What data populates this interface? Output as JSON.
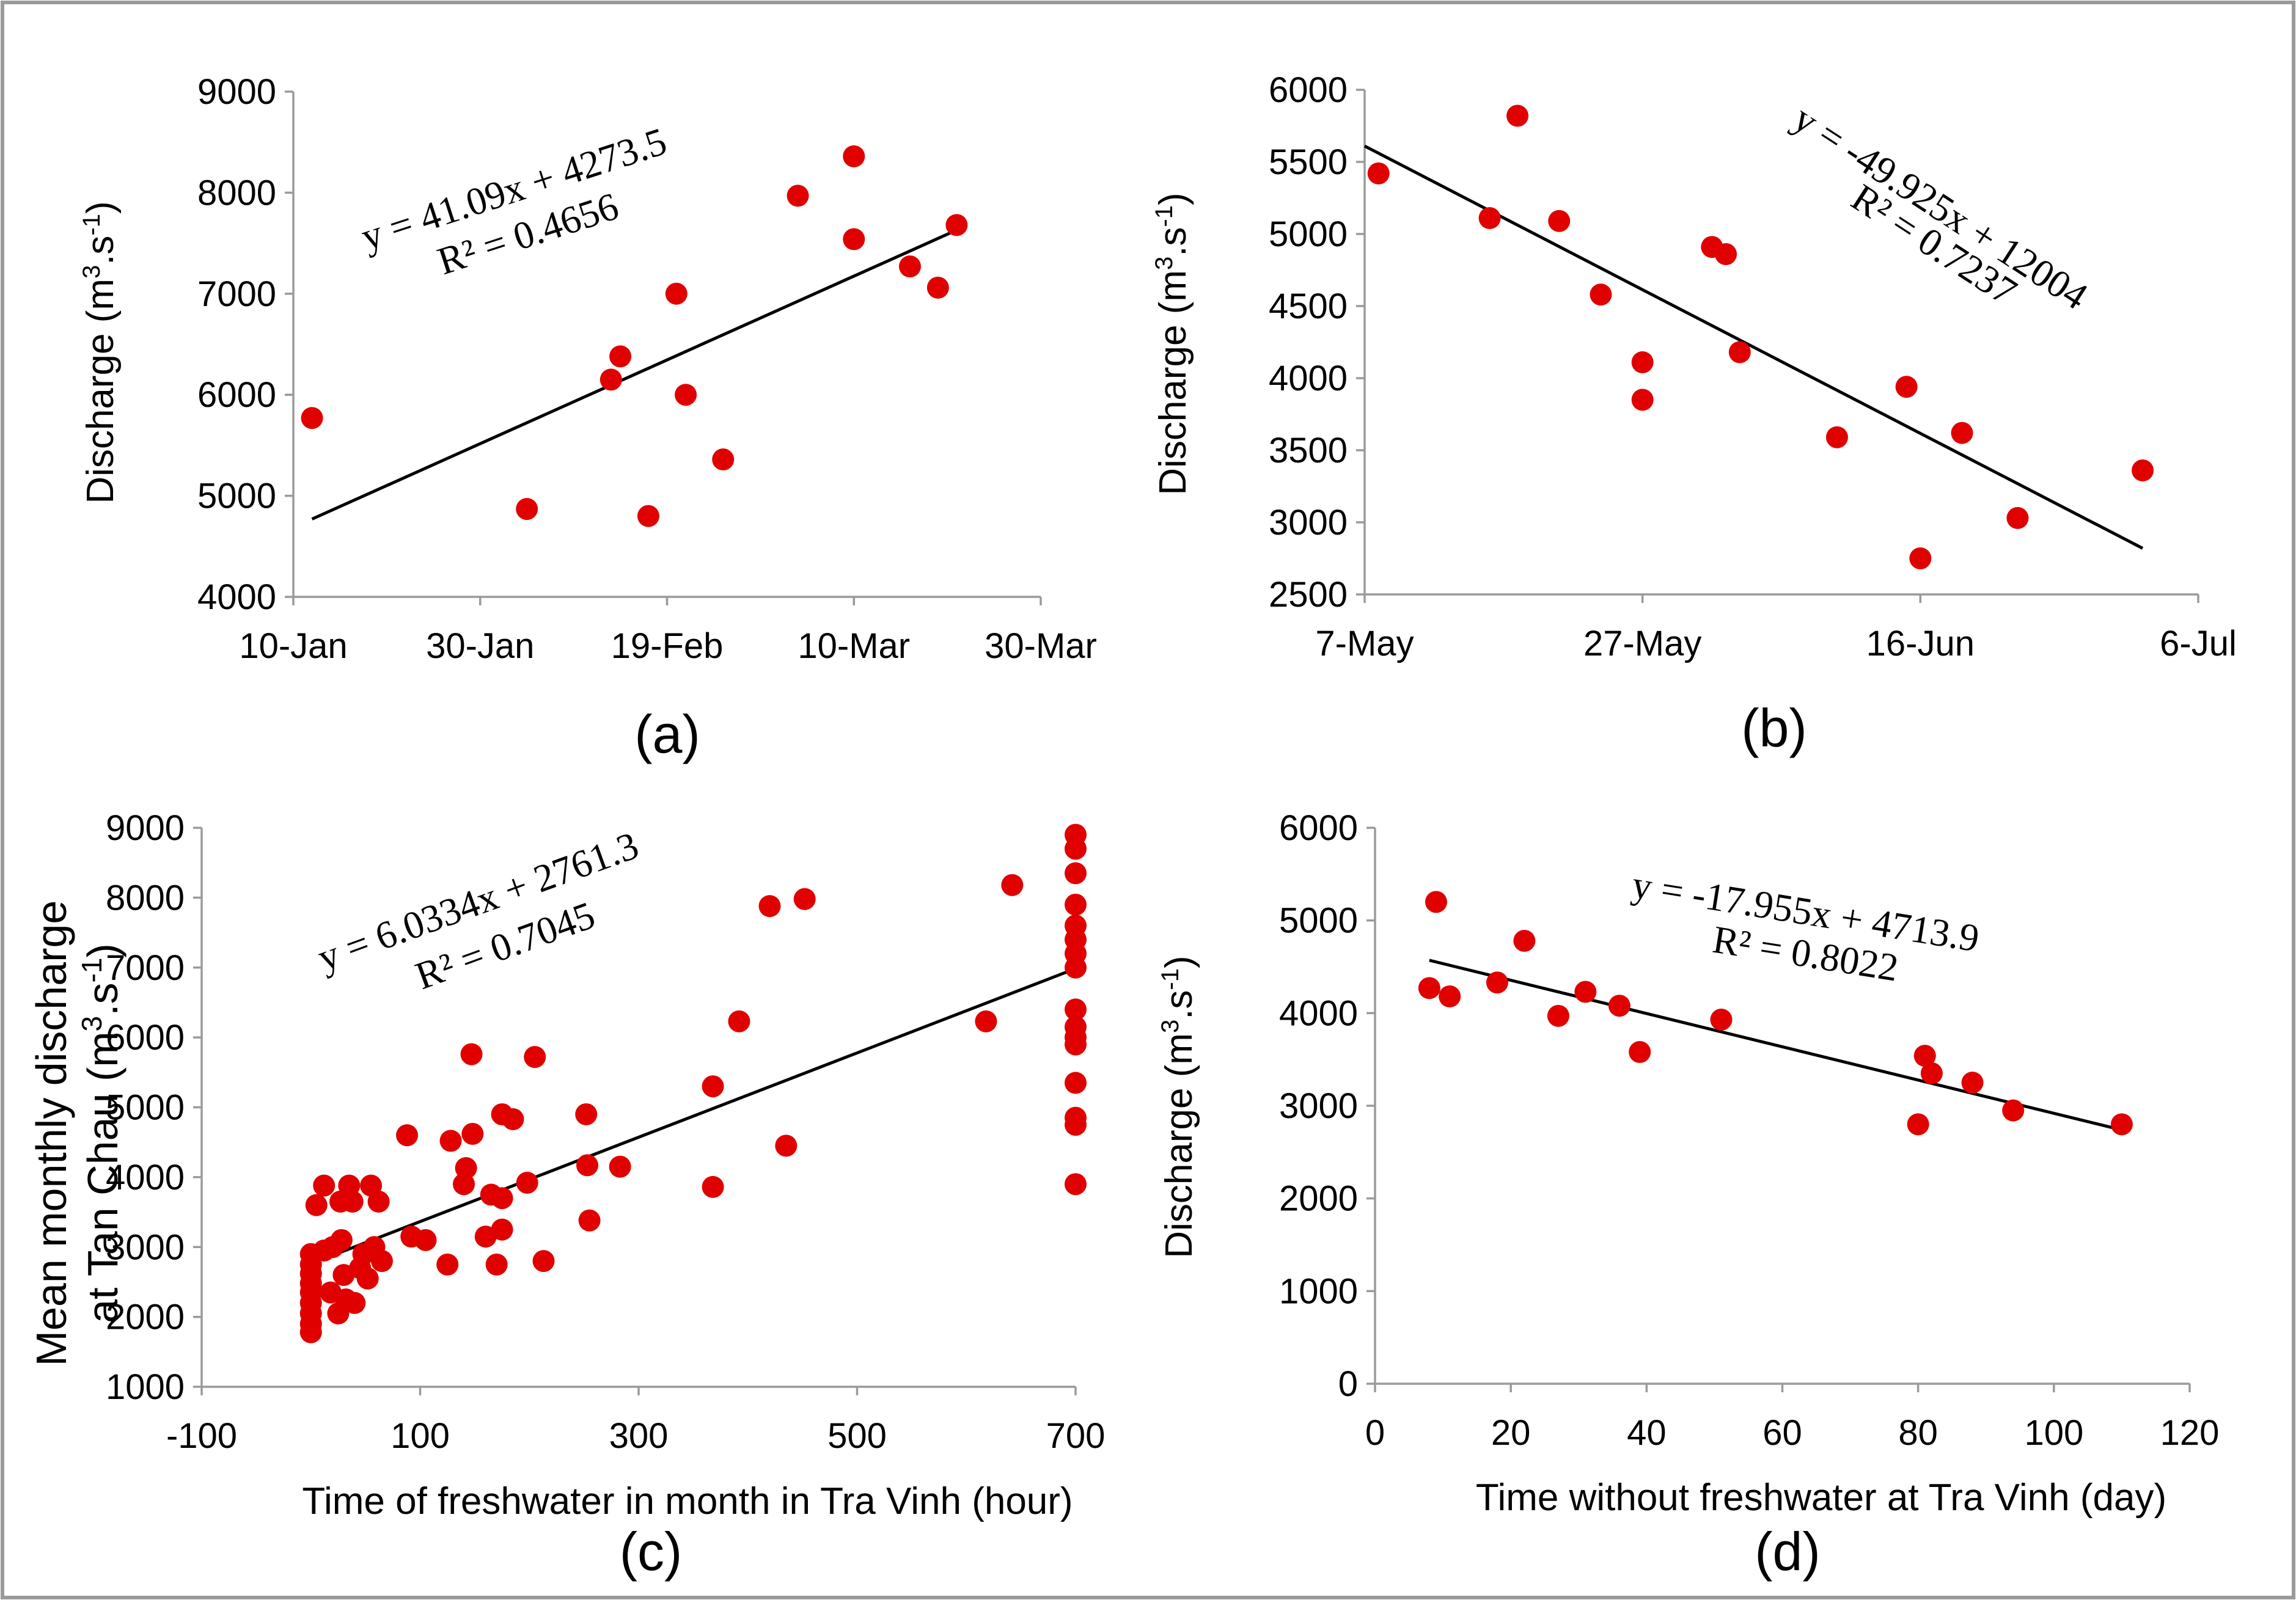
{
  "figure": {
    "frame_color": "#9a9a9a",
    "point_color": "#e00000",
    "trend_color": "#000000"
  },
  "chart_data": [
    {
      "id": "a",
      "type": "scatter",
      "panel_label": "(a)",
      "xlabel": "",
      "ylabel_parts": [
        "Discharge (m",
        "3",
        ".s",
        "-1",
        ")"
      ],
      "x_axis_kind": "date",
      "xlim": [
        "2000-01-10",
        "2000-03-30"
      ],
      "x_tick_values": [
        "2000-01-10",
        "2000-01-30",
        "2000-02-19",
        "2000-03-10",
        "2000-03-30"
      ],
      "x_tick_labels": [
        "10-Jan",
        "30-Jan",
        "19-Feb",
        "10-Mar",
        "30-Mar"
      ],
      "ylim": [
        4000,
        9000
      ],
      "y_ticks": [
        4000,
        5000,
        6000,
        7000,
        8000,
        9000
      ],
      "points": [
        {
          "x": "2000-01-12",
          "y": 5770
        },
        {
          "x": "2000-02-04",
          "y": 4870
        },
        {
          "x": "2000-02-13",
          "y": 6150
        },
        {
          "x": "2000-02-14",
          "y": 6380
        },
        {
          "x": "2000-02-17",
          "y": 4800
        },
        {
          "x": "2000-02-20",
          "y": 7000
        },
        {
          "x": "2000-02-21",
          "y": 6000
        },
        {
          "x": "2000-02-25",
          "y": 5360
        },
        {
          "x": "2000-03-04",
          "y": 7970
        },
        {
          "x": "2000-03-10",
          "y": 8360
        },
        {
          "x": "2000-03-10",
          "y": 7540
        },
        {
          "x": "2000-03-16",
          "y": 7270
        },
        {
          "x": "2000-03-19",
          "y": 7060
        },
        {
          "x": "2000-03-21",
          "y": 7680
        }
      ],
      "trendline": {
        "from": {
          "x": "2000-01-12",
          "y": 4770
        },
        "to": {
          "x": "2000-03-21",
          "y": 7630
        }
      },
      "equation": "y = 41.09x + 4273.5",
      "r_squared": "R² = 0.4656"
    },
    {
      "id": "b",
      "type": "scatter",
      "panel_label": "(b)",
      "xlabel": "",
      "ylabel_parts": [
        "Discharge (m",
        "3",
        ".s",
        "-1",
        ")"
      ],
      "x_axis_kind": "date",
      "xlim": [
        "2000-05-07",
        "2000-07-06"
      ],
      "x_tick_values": [
        "2000-05-07",
        "2000-05-27",
        "2000-06-16",
        "2000-07-06"
      ],
      "x_tick_labels": [
        "7-May",
        "27-May",
        "16-Jun",
        "6-Jul"
      ],
      "ylim": [
        2500,
        6000
      ],
      "y_ticks": [
        2500,
        3000,
        3500,
        4000,
        4500,
        5000,
        5500,
        6000
      ],
      "points": [
        {
          "x": "2000-05-08",
          "y": 5420
        },
        {
          "x": "2000-05-16",
          "y": 5110
        },
        {
          "x": "2000-05-18",
          "y": 5820
        },
        {
          "x": "2000-05-21",
          "y": 5090
        },
        {
          "x": "2000-05-24",
          "y": 4580
        },
        {
          "x": "2000-05-27",
          "y": 4110
        },
        {
          "x": "2000-05-27",
          "y": 3850
        },
        {
          "x": "2000-06-01",
          "y": 4910
        },
        {
          "x": "2000-06-02",
          "y": 4860
        },
        {
          "x": "2000-06-03",
          "y": 4180
        },
        {
          "x": "2000-06-10",
          "y": 3590
        },
        {
          "x": "2000-06-15",
          "y": 3940
        },
        {
          "x": "2000-06-16",
          "y": 2750
        },
        {
          "x": "2000-06-19",
          "y": 3620
        },
        {
          "x": "2000-06-23",
          "y": 3030
        },
        {
          "x": "2000-07-02",
          "y": 3360
        }
      ],
      "trendline": {
        "from": {
          "x": "2000-05-07",
          "y": 5610
        },
        "to": {
          "x": "2000-07-02",
          "y": 2820
        }
      },
      "equation": "y = -49.925x + 12004",
      "r_squared": "R² = 0.7237"
    },
    {
      "id": "c",
      "type": "scatter",
      "panel_label": "(c)",
      "xlabel": "Time of freshwater in month in Tra Vinh (hour)",
      "ylabel_line1": "Mean monthly discharge",
      "ylabel_line2_parts": [
        "at Tan Chau (m",
        "3",
        ".s",
        "-1",
        ")"
      ],
      "x_axis_kind": "number",
      "xlim": [
        -100,
        700
      ],
      "x_ticks": [
        -100,
        100,
        300,
        500,
        700
      ],
      "ylim": [
        1000,
        9000
      ],
      "y_ticks": [
        1000,
        2000,
        3000,
        4000,
        5000,
        6000,
        7000,
        8000,
        9000
      ],
      "points": [
        {
          "x": 0,
          "y": 1780
        },
        {
          "x": 0,
          "y": 1900
        },
        {
          "x": 0,
          "y": 2050
        },
        {
          "x": 0,
          "y": 2200
        },
        {
          "x": 0,
          "y": 2350
        },
        {
          "x": 0,
          "y": 2480
        },
        {
          "x": 0,
          "y": 2620
        },
        {
          "x": 0,
          "y": 2750
        },
        {
          "x": 0,
          "y": 2900
        },
        {
          "x": 5,
          "y": 3600
        },
        {
          "x": 12,
          "y": 3880
        },
        {
          "x": 12,
          "y": 2950
        },
        {
          "x": 18,
          "y": 2350
        },
        {
          "x": 20,
          "y": 3000
        },
        {
          "x": 25,
          "y": 2050
        },
        {
          "x": 27,
          "y": 3650
        },
        {
          "x": 28,
          "y": 3100
        },
        {
          "x": 30,
          "y": 2600
        },
        {
          "x": 32,
          "y": 2250
        },
        {
          "x": 35,
          "y": 3880
        },
        {
          "x": 38,
          "y": 3650
        },
        {
          "x": 40,
          "y": 2200
        },
        {
          "x": 45,
          "y": 2700
        },
        {
          "x": 48,
          "y": 2900
        },
        {
          "x": 52,
          "y": 2550
        },
        {
          "x": 55,
          "y": 3880
        },
        {
          "x": 58,
          "y": 3000
        },
        {
          "x": 62,
          "y": 3650
        },
        {
          "x": 65,
          "y": 2800
        },
        {
          "x": 88,
          "y": 4600
        },
        {
          "x": 92,
          "y": 3150
        },
        {
          "x": 105,
          "y": 3100
        },
        {
          "x": 125,
          "y": 2750
        },
        {
          "x": 128,
          "y": 4520
        },
        {
          "x": 140,
          "y": 3900
        },
        {
          "x": 142,
          "y": 4130
        },
        {
          "x": 147,
          "y": 5760
        },
        {
          "x": 148,
          "y": 4620
        },
        {
          "x": 160,
          "y": 3150
        },
        {
          "x": 165,
          "y": 3750
        },
        {
          "x": 170,
          "y": 2750
        },
        {
          "x": 175,
          "y": 3700
        },
        {
          "x": 175,
          "y": 3250
        },
        {
          "x": 175,
          "y": 4900
        },
        {
          "x": 185,
          "y": 4830
        },
        {
          "x": 198,
          "y": 3920
        },
        {
          "x": 205,
          "y": 5720
        },
        {
          "x": 213,
          "y": 2800
        },
        {
          "x": 252,
          "y": 4900
        },
        {
          "x": 253,
          "y": 4170
        },
        {
          "x": 255,
          "y": 3380
        },
        {
          "x": 283,
          "y": 4150
        },
        {
          "x": 368,
          "y": 3860
        },
        {
          "x": 368,
          "y": 5300
        },
        {
          "x": 392,
          "y": 6230
        },
        {
          "x": 420,
          "y": 7880
        },
        {
          "x": 435,
          "y": 4450
        },
        {
          "x": 452,
          "y": 7980
        },
        {
          "x": 618,
          "y": 6230
        },
        {
          "x": 642,
          "y": 8180
        },
        {
          "x": 700,
          "y": 3900
        },
        {
          "x": 700,
          "y": 4750
        },
        {
          "x": 700,
          "y": 4850
        },
        {
          "x": 700,
          "y": 5350
        },
        {
          "x": 700,
          "y": 5900
        },
        {
          "x": 700,
          "y": 6000
        },
        {
          "x": 700,
          "y": 6150
        },
        {
          "x": 700,
          "y": 6400
        },
        {
          "x": 700,
          "y": 7000
        },
        {
          "x": 700,
          "y": 7200
        },
        {
          "x": 700,
          "y": 7400
        },
        {
          "x": 700,
          "y": 7600
        },
        {
          "x": 700,
          "y": 7900
        },
        {
          "x": 700,
          "y": 8350
        },
        {
          "x": 700,
          "y": 8700
        },
        {
          "x": 700,
          "y": 8900
        }
      ],
      "trendline": {
        "from": {
          "x": 0,
          "y": 2761
        },
        "to": {
          "x": 700,
          "y": 6985
        }
      },
      "equation": "y = 6.0334x + 2761.3",
      "r_squared": "R² = 0.7045"
    },
    {
      "id": "d",
      "type": "scatter",
      "panel_label": "(d)",
      "xlabel": "Time without freshwater at Tra Vinh (day)",
      "ylabel_parts": [
        "Discharge (m",
        "3",
        ".s",
        "-1",
        ")"
      ],
      "x_axis_kind": "number",
      "xlim": [
        0,
        120
      ],
      "x_ticks": [
        0,
        20,
        40,
        60,
        80,
        100,
        120
      ],
      "ylim": [
        0,
        6000
      ],
      "y_ticks": [
        0,
        1000,
        2000,
        3000,
        4000,
        5000,
        6000
      ],
      "points": [
        {
          "x": 8,
          "y": 4270
        },
        {
          "x": 9,
          "y": 5200
        },
        {
          "x": 11,
          "y": 4180
        },
        {
          "x": 18,
          "y": 4330
        },
        {
          "x": 22,
          "y": 4780
        },
        {
          "x": 27,
          "y": 3970
        },
        {
          "x": 31,
          "y": 4230
        },
        {
          "x": 36,
          "y": 4080
        },
        {
          "x": 39,
          "y": 3580
        },
        {
          "x": 51,
          "y": 3930
        },
        {
          "x": 80,
          "y": 2800
        },
        {
          "x": 81,
          "y": 3540
        },
        {
          "x": 82,
          "y": 3350
        },
        {
          "x": 88,
          "y": 3250
        },
        {
          "x": 94,
          "y": 2950
        },
        {
          "x": 110,
          "y": 2800
        }
      ],
      "trendline": {
        "from": {
          "x": 8,
          "y": 4570
        },
        "to": {
          "x": 110,
          "y": 2739
        }
      },
      "equation": "y = -17.955x + 4713.9",
      "r_squared": "R² = 0.8022"
    }
  ]
}
